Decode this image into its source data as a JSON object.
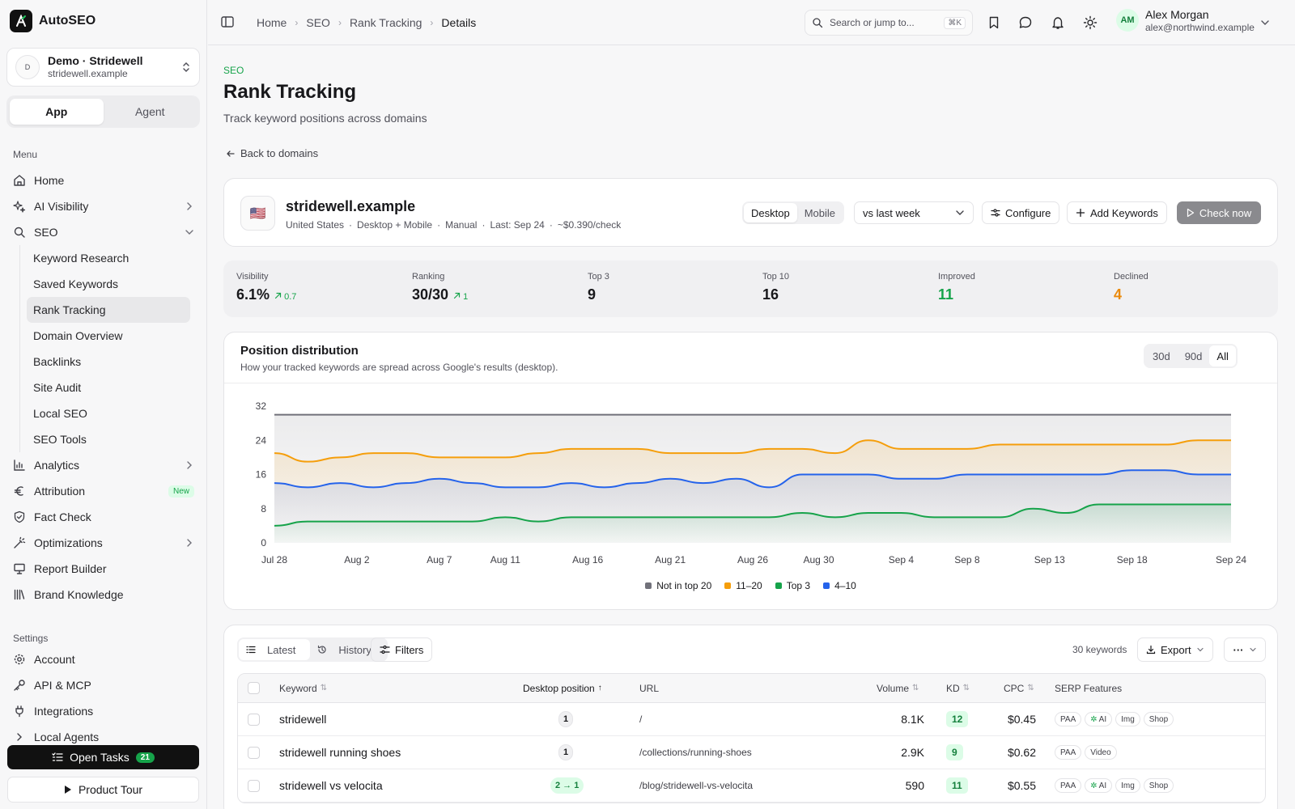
{
  "app": {
    "name": "AutoSEO"
  },
  "workspace": {
    "avatar": "D",
    "name": "Demo · Stridewell",
    "domain": "stridewell.example"
  },
  "mode": {
    "app": "App",
    "agent": "Agent"
  },
  "sidebar": {
    "menu_label": "Menu",
    "items": [
      {
        "label": "Home"
      },
      {
        "label": "AI Visibility"
      },
      {
        "label": "SEO"
      }
    ],
    "seo_sub": [
      "Keyword Research",
      "Saved Keywords",
      "Rank Tracking",
      "Domain Overview",
      "Backlinks",
      "Site Audit",
      "Local SEO",
      "SEO Tools"
    ],
    "items2": [
      {
        "label": "Analytics"
      },
      {
        "label": "Attribution",
        "badge": "New"
      },
      {
        "label": "Fact Check"
      },
      {
        "label": "Optimizations"
      },
      {
        "label": "Report Builder"
      },
      {
        "label": "Brand Knowledge"
      }
    ],
    "settings_label": "Settings",
    "settings": [
      {
        "label": "Account"
      },
      {
        "label": "API & MCP"
      },
      {
        "label": "Integrations"
      },
      {
        "label": "Local Agents"
      }
    ],
    "open_tasks": "Open Tasks",
    "open_tasks_count": "21",
    "product_tour": "Product Tour"
  },
  "topbar": {
    "breadcrumbs": [
      "Home",
      "SEO",
      "Rank Tracking",
      "Details"
    ],
    "search_placeholder": "Search or jump to...",
    "search_shortcut": "⌘K",
    "user_initials": "AM",
    "user_name": "Alex Morgan",
    "user_email": "alex@northwind.example"
  },
  "page": {
    "eyebrow": "SEO",
    "title": "Rank Tracking",
    "subtitle": "Track keyword positions across domains",
    "back": "Back to domains"
  },
  "domain": {
    "flag": "🇺🇸",
    "name": "stridewell.example",
    "meta": [
      "United States",
      "·",
      "Desktop + Mobile",
      "·",
      "Manual",
      "·",
      "Last: Sep 24",
      "·",
      "~$0.390/check"
    ],
    "device_desktop": "Desktop",
    "device_mobile": "Mobile",
    "compare": "vs last week",
    "configure": "Configure",
    "add_keywords": "Add Keywords",
    "check_now": "Check now"
  },
  "stats": [
    {
      "label": "Visibility",
      "value": "6.1%",
      "delta": "0.7",
      "color": "#18181b"
    },
    {
      "label": "Ranking",
      "value": "30/30",
      "delta": "1",
      "color": "#18181b"
    },
    {
      "label": "Top 3",
      "value": "9",
      "delta": "",
      "color": "#18181b"
    },
    {
      "label": "Top 10",
      "value": "16",
      "delta": "",
      "color": "#18181b"
    },
    {
      "label": "Improved",
      "value": "11",
      "delta": "",
      "color": "#16a34a"
    },
    {
      "label": "Declined",
      "value": "4",
      "delta": "",
      "color": "#ea8a0c"
    }
  ],
  "chart_section": {
    "title": "Position distribution",
    "subtitle": "How your tracked keywords are spread across Google's results (desktop).",
    "ranges": [
      "30d",
      "90d",
      "All"
    ],
    "active_range": "All"
  },
  "chart_data": {
    "type": "area",
    "title": "Position distribution",
    "x": [
      "Jul 28",
      "Jul 30",
      "Aug 1",
      "Aug 3",
      "Aug 5",
      "Aug 7",
      "Aug 9",
      "Aug 11",
      "Aug 13",
      "Aug 15",
      "Aug 17",
      "Aug 19",
      "Aug 21",
      "Aug 23",
      "Aug 25",
      "Aug 27",
      "Aug 29",
      "Aug 31",
      "Sep 2",
      "Sep 4",
      "Sep 6",
      "Sep 8",
      "Sep 10",
      "Sep 12",
      "Sep 14",
      "Sep 16",
      "Sep 18",
      "Sep 20",
      "Sep 22",
      "Sep 24"
    ],
    "x_ticks": [
      "Jul 28",
      "Aug 2",
      "Aug 7",
      "Aug 11",
      "Aug 16",
      "Aug 21",
      "Aug 26",
      "Aug 30",
      "Sep 4",
      "Sep 8",
      "Sep 13",
      "Sep 18",
      "Sep 24"
    ],
    "ylim": [
      0,
      32
    ],
    "y_ticks": [
      0,
      8,
      16,
      24,
      32
    ],
    "series": [
      {
        "name": "Not in top 20",
        "color": "#71717a",
        "values": [
          30,
          30,
          30,
          30,
          30,
          30,
          30,
          30,
          30,
          30,
          30,
          30,
          30,
          30,
          30,
          30,
          30,
          30,
          30,
          30,
          30,
          30,
          30,
          30,
          30,
          30,
          30,
          30,
          30,
          30
        ]
      },
      {
        "name": "11–20",
        "color": "#f59e0b",
        "values": [
          21,
          19,
          20,
          21,
          21,
          20,
          20,
          20,
          21,
          22,
          22,
          22,
          21,
          21,
          21,
          22,
          22,
          21,
          24,
          22,
          22,
          22,
          23,
          23,
          23,
          23,
          23,
          23,
          24,
          24
        ]
      },
      {
        "name": "4–10",
        "color": "#2563eb",
        "values": [
          14,
          13,
          14,
          13,
          14,
          15,
          14,
          13,
          13,
          14,
          13,
          14,
          15,
          14,
          15,
          13,
          16,
          16,
          16,
          15,
          15,
          16,
          16,
          16,
          16,
          16,
          17,
          17,
          16,
          16
        ]
      },
      {
        "name": "Top 3",
        "color": "#16a34a",
        "values": [
          4,
          5,
          5,
          5,
          5,
          5,
          5,
          6,
          5,
          6,
          6,
          6,
          6,
          6,
          6,
          6,
          7,
          6,
          7,
          7,
          6,
          6,
          6,
          8,
          7,
          9,
          9,
          9,
          9,
          9
        ]
      }
    ],
    "legend": [
      "Not in top 20",
      "11–20",
      "Top 3",
      "4–10"
    ],
    "legend_placement": "bottom"
  },
  "table_section": {
    "latest": "Latest",
    "history": "History",
    "filters": "Filters",
    "count": "30 keywords",
    "export": "Export",
    "more": "···",
    "columns": [
      "Keyword",
      "Desktop position",
      "URL",
      "Volume",
      "KD",
      "CPC",
      "SERP Features"
    ],
    "rows": [
      {
        "keyword": "stridewell",
        "position": "1",
        "improved": false,
        "url": "/",
        "volume": "8.1K",
        "kd": "12",
        "cpc": "$0.45",
        "features": [
          "PAA",
          "AI",
          "Img",
          "Shop"
        ]
      },
      {
        "keyword": "stridewell running shoes",
        "position": "1",
        "improved": false,
        "url": "/collections/running-shoes",
        "volume": "2.9K",
        "kd": "9",
        "cpc": "$0.62",
        "features": [
          "PAA",
          "Video"
        ]
      },
      {
        "keyword": "stridewell vs velocita",
        "position": "2 → 1",
        "improved": true,
        "url": "/blog/stridewell-vs-velocita",
        "volume": "590",
        "kd": "11",
        "cpc": "$0.55",
        "features": [
          "PAA",
          "AI",
          "Img",
          "Shop"
        ]
      }
    ]
  },
  "colors": {
    "accent": "#16a34a",
    "warning": "#ea8a0c",
    "primary_dark": "#111111"
  }
}
